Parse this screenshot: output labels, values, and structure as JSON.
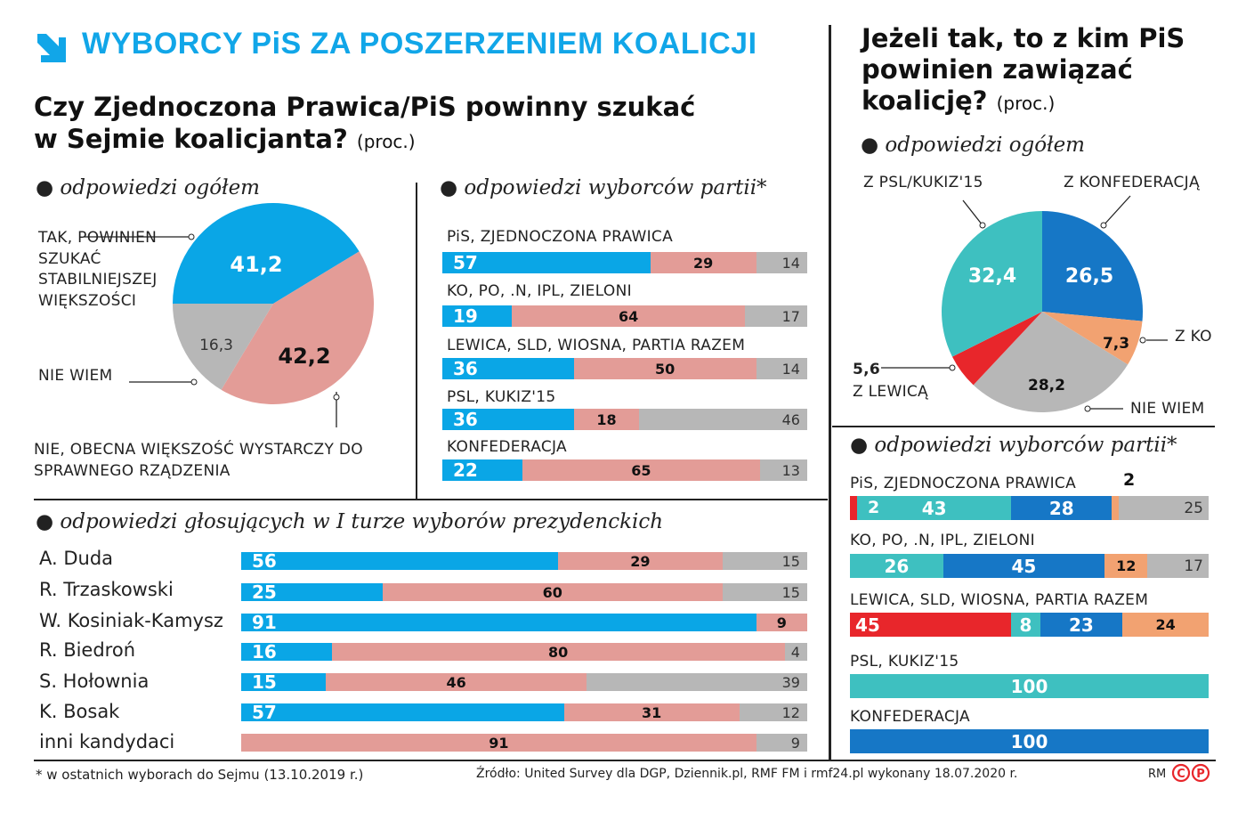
{
  "header": {
    "title": "WYBORCY PiS ZA POSZERZENIEM KOALICJI",
    "question_left": "Czy Zjednoczona Prawica/PiS powinny szukać w Sejmie koalicjanta?",
    "unit": "(proc.)",
    "question_right": "Jeżeli tak, to z kim PiS powinien zawiązać koalicję?"
  },
  "colors": {
    "title": "#11a6e8",
    "tak": "#0aa6e6",
    "nie": "#e39c97",
    "nie_wiem": "#b7b7b7",
    "z_psl_kukiz": "#3ec0c0",
    "z_konfederacja": "#1677c6",
    "z_ko": "#f2a271",
    "z_lewica": "#e8262b"
  },
  "chart_data": [
    {
      "type": "pie",
      "subtitle": "odpowiedzi ogółem",
      "slices": [
        {
          "name": "TAK, POWINIEN SZUKAĆ STABILNIEJSZEJ WIĘKSZOŚCI",
          "value": 41.2,
          "label": "41,2"
        },
        {
          "name": "NIE, OBECNA WIĘKSZOŚĆ WYSTARCZY DO SPRAWNEGO RZĄDZENIA",
          "value": 42.2,
          "label": "42,2"
        },
        {
          "name": "NIE WIEM",
          "value": 16.3,
          "label": "16,3"
        }
      ]
    },
    {
      "type": "bar",
      "stacked": true,
      "orientation": "horizontal",
      "subtitle": "odpowiedzi wyborców partii*",
      "categories": [
        "PiS, ZJEDNOCZONA PRAWICA",
        "KO, PO, .N, IPL, ZIELONI",
        "LEWICA, SLD, WIOSNA, PARTIA RAZEM",
        "PSL, KUKIZ'15",
        "KONFEDERACJA"
      ],
      "series": [
        {
          "values": [
            57,
            19,
            36,
            36,
            22
          ]
        },
        {
          "values": [
            29,
            64,
            50,
            18,
            65
          ]
        },
        {
          "values": [
            14,
            17,
            14,
            46,
            13
          ]
        }
      ]
    },
    {
      "type": "bar",
      "stacked": true,
      "orientation": "horizontal",
      "subtitle": "odpowiedzi głosujących w I turze wyborów prezydenckich",
      "categories": [
        "A. Duda",
        "R. Trzaskowski",
        "W. Kosiniak-Kamysz",
        "R. Biedroń",
        "S. Hołownia",
        "K. Bosak",
        "inni kandydaci"
      ],
      "series": [
        {
          "values": [
            56,
            25,
            91,
            16,
            15,
            57,
            0
          ]
        },
        {
          "values": [
            29,
            60,
            9,
            80,
            46,
            31,
            91
          ]
        },
        {
          "values": [
            15,
            15,
            0,
            4,
            39,
            12,
            9
          ]
        }
      ]
    },
    {
      "type": "pie",
      "subtitle": "odpowiedzi ogółem",
      "slices": [
        {
          "name": "Z KONFEDERACJĄ",
          "value": 26.5,
          "label": "26,5"
        },
        {
          "name": "Z KO",
          "value": 7.3,
          "label": "7,3"
        },
        {
          "name": "NIE WIEM",
          "value": 28.2,
          "label": "28,2"
        },
        {
          "name": "Z LEWICĄ",
          "value": 5.6,
          "label": "5,6"
        },
        {
          "name": "Z PSL/KUKIZ'15",
          "value": 32.4,
          "label": "32,4"
        }
      ]
    },
    {
      "type": "bar",
      "stacked": true,
      "orientation": "horizontal",
      "subtitle": "odpowiedzi wyborców partii*",
      "categories": [
        "PiS, ZJEDNOCZONA PRAWICA",
        "KO, PO, .N, IPL, ZIELONI",
        "LEWICA, SLD, WIOSNA, PARTIA RAZEM",
        "PSL, KUKIZ'15",
        "KONFEDERACJA"
      ],
      "series": [
        {
          "name": "Z LEWICĄ",
          "values": [
            2,
            0,
            45,
            0,
            0
          ]
        },
        {
          "name": "Z PSL/KUKIZ'15",
          "values": [
            43,
            26,
            8,
            100,
            0
          ]
        },
        {
          "name": "Z KONFEDERACJĄ",
          "values": [
            28,
            45,
            23,
            0,
            100
          ]
        },
        {
          "name": "Z KO",
          "values": [
            2,
            12,
            24,
            0,
            0
          ]
        },
        {
          "name": "NIE WIEM",
          "values": [
            25,
            17,
            0,
            0,
            0
          ]
        }
      ]
    }
  ],
  "footer": {
    "note": "* w ostatnich wyborach do Sejmu (13.10.2019 r.)",
    "source": "Źródło: United Survey dla DGP, Dziennik.pl, RMF FM i rmf24.pl wykonany 18.07.2020 r.",
    "credit": "RM"
  }
}
